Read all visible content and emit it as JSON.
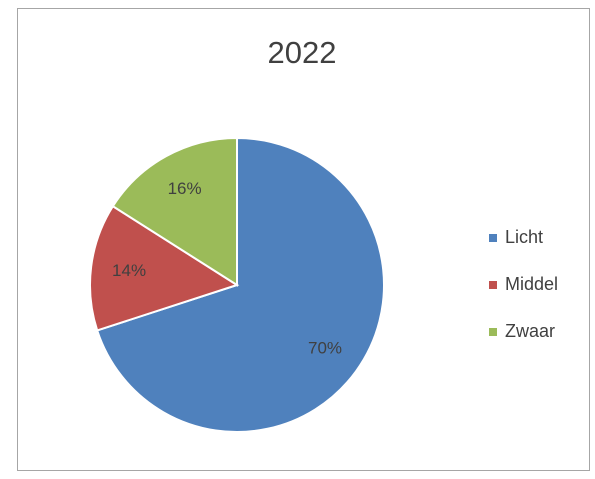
{
  "chart_data": {
    "type": "pie",
    "title": "2022",
    "categories": [
      "Licht",
      "Middel",
      "Zwaar"
    ],
    "values": [
      70,
      14,
      16
    ],
    "value_labels": [
      "70%",
      "14%",
      "16%"
    ],
    "colors": [
      "#4f81bd",
      "#c0504d",
      "#9bbb59"
    ],
    "legend": "right"
  }
}
